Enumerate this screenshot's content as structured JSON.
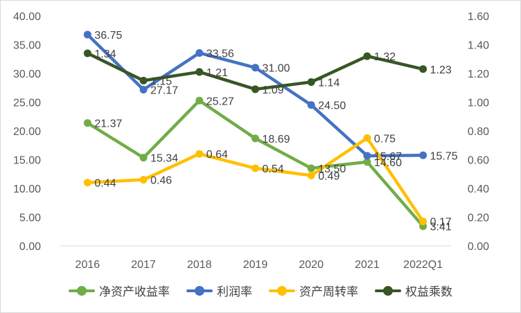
{
  "chart_data": {
    "type": "line",
    "categories": [
      "2016",
      "2017",
      "2018",
      "2019",
      "2020",
      "2021",
      "2022Q1"
    ],
    "y_left": {
      "ticks": [
        "0.00",
        "5.00",
        "10.00",
        "15.00",
        "20.00",
        "25.00",
        "30.00",
        "35.00",
        "40.00"
      ],
      "ylim": [
        0,
        40
      ]
    },
    "y_right": {
      "ticks": [
        "0.00",
        "0.20",
        "0.40",
        "0.60",
        "0.80",
        "1.00",
        "1.20",
        "1.40",
        "1.60"
      ],
      "ylim": [
        0,
        1.6
      ]
    },
    "grid": false,
    "legend_position": "bottom",
    "series": [
      {
        "name": "净资产收益率",
        "axis": "left",
        "color": "#70ad47",
        "values": [
          21.37,
          15.34,
          25.27,
          18.69,
          13.5,
          14.6,
          3.41
        ],
        "labels": [
          "21.37",
          "15.34",
          "25.27",
          "18.69",
          "13.50",
          "14.60",
          "3.41"
        ]
      },
      {
        "name": "利润率",
        "axis": "left",
        "color": "#4472c4",
        "values": [
          36.75,
          27.17,
          33.56,
          31.0,
          24.5,
          15.67,
          15.75
        ],
        "labels": [
          "36.75",
          "27.17",
          "33.56",
          "31.00",
          "24.50",
          "15.67",
          "15.75"
        ]
      },
      {
        "name": "资产周转率",
        "axis": "right",
        "color": "#ffc000",
        "values": [
          0.44,
          0.46,
          0.64,
          0.54,
          0.49,
          0.75,
          0.17
        ],
        "labels": [
          "0.44",
          "0.46",
          "0.64",
          "0.54",
          "0.49",
          "0.75",
          "0.17"
        ]
      },
      {
        "name": "权益乘数",
        "axis": "right",
        "color": "#375623",
        "values": [
          1.34,
          1.15,
          1.21,
          1.09,
          1.14,
          1.32,
          1.23
        ],
        "labels": [
          "1.34",
          "1.15",
          "1.21",
          "1.09",
          "1.14",
          "1.32",
          "1.23"
        ]
      }
    ]
  }
}
